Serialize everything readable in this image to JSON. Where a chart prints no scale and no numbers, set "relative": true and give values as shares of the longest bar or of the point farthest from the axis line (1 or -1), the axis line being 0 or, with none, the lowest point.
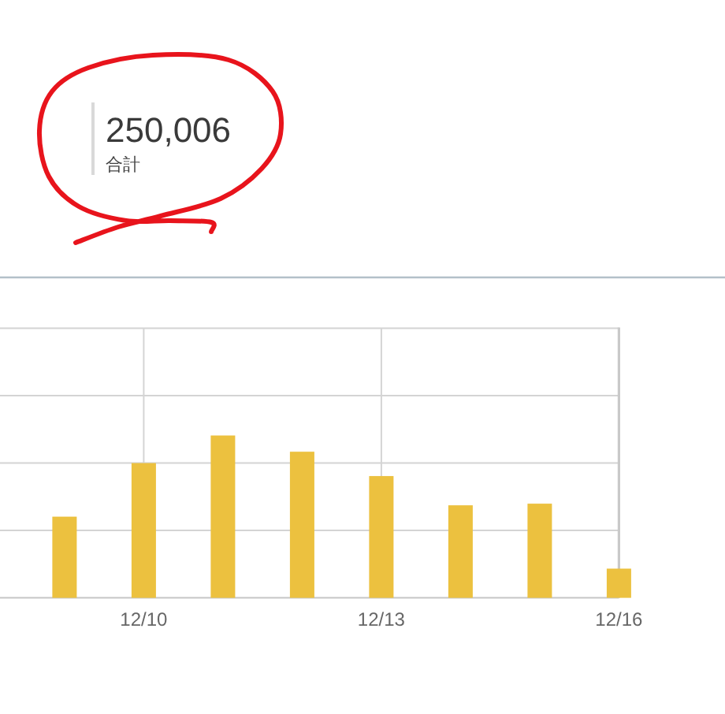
{
  "chart_data": [
    {
      "type": "other",
      "annotations": [
        "250,006",
        "合計"
      ]
    },
    {
      "type": "bar",
      "categories": [
        null,
        "12/10",
        null,
        null,
        "12/13",
        null,
        null,
        "12/16"
      ],
      "values": [
        0.5,
        0.83,
        1,
        0.9,
        0.75,
        0.57,
        0.58,
        0.18
      ],
      "color": "#ecc13f",
      "relative": true,
      "grid": true
    }
  ]
}
